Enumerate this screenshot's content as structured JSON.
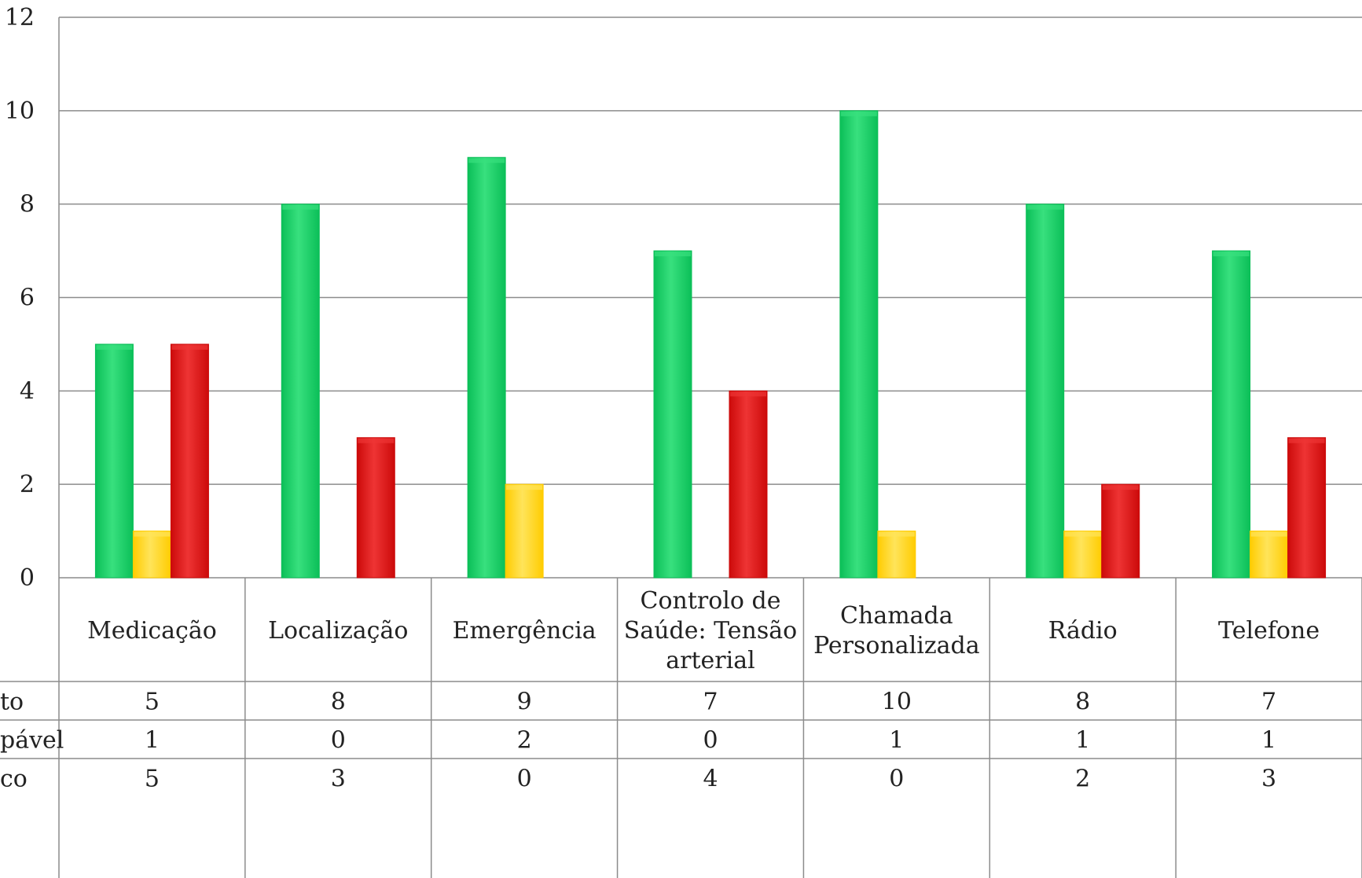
{
  "colors": {
    "series_0": "#0bbf58",
    "series_0_light": "#38e07e",
    "series_1": "#ffcc00",
    "series_1_light": "#ffe45a",
    "series_2": "#cc0a0a",
    "series_2_light": "#ee3434",
    "grid": "#8c8c8c",
    "table_border": "#8c8c8c"
  },
  "chart_data": {
    "type": "bar",
    "title": "",
    "xlabel": "",
    "ylabel": "",
    "ylim": [
      0,
      12
    ],
    "y_ticks": [
      "0",
      "2",
      "4",
      "6",
      "8",
      "10",
      "12"
    ],
    "grid": true,
    "legend": "data table rows below the plot",
    "categories": [
      [
        "Medicação"
      ],
      [
        "Localização"
      ],
      [
        "Emergência"
      ],
      [
        "Controlo de",
        "Saúde: Tensão",
        "arterial"
      ],
      [
        "Chamada",
        "Personalizada"
      ],
      [
        "Rádio"
      ],
      [
        "Telefone"
      ]
    ],
    "series": [
      {
        "name": "to",
        "values": [
          5,
          8,
          9,
          7,
          10,
          8,
          7
        ]
      },
      {
        "name": "pável",
        "values": [
          1,
          0,
          2,
          0,
          1,
          1,
          1
        ]
      },
      {
        "name": "co",
        "values": [
          5,
          3,
          0,
          4,
          0,
          2,
          3
        ]
      }
    ]
  }
}
